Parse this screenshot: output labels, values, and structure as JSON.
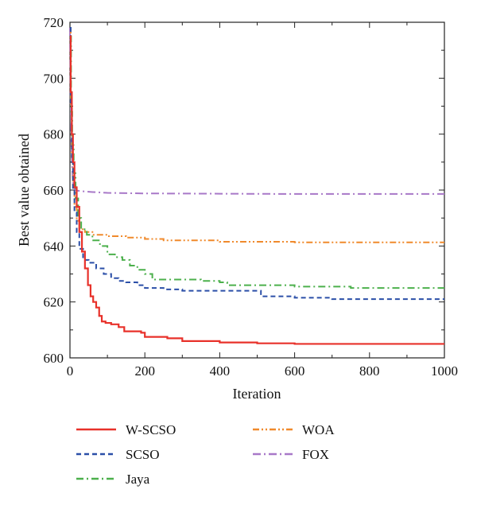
{
  "chart_data": {
    "type": "line",
    "title": "",
    "xlabel": "Iteration",
    "ylabel": "Best value obtained",
    "xlim": [
      0,
      1000
    ],
    "ylim": [
      600,
      720
    ],
    "xticks": [
      0,
      200,
      400,
      600,
      800,
      1000
    ],
    "yticks": [
      600,
      620,
      640,
      660,
      680,
      700,
      720
    ],
    "grid": false,
    "legend_position": "below",
    "series": [
      {
        "name": "W-SCSO",
        "color": "#e8312a",
        "dash": "solid",
        "step": true,
        "x": [
          0,
          2,
          5,
          8,
          12,
          18,
          25,
          32,
          40,
          48,
          55,
          62,
          70,
          78,
          85,
          95,
          110,
          130,
          145,
          170,
          190,
          200,
          260,
          300,
          400,
          500,
          600,
          800,
          1000
        ],
        "y": [
          715,
          695,
          680,
          670,
          661,
          654,
          645,
          638,
          632,
          626,
          622,
          620,
          618,
          615,
          613,
          612.5,
          612,
          611,
          609.5,
          609.5,
          609,
          607.5,
          607,
          606,
          605.5,
          605.2,
          605,
          605,
          605
        ]
      },
      {
        "name": "SCSO",
        "color": "#2b4fa8",
        "dash": "6,4",
        "step": true,
        "x": [
          0,
          2,
          5,
          8,
          12,
          18,
          25,
          35,
          50,
          70,
          90,
          110,
          130,
          150,
          180,
          200,
          250,
          300,
          400,
          500,
          510,
          600,
          700,
          800,
          1000
        ],
        "y": [
          718,
          690,
          670,
          660,
          652,
          645,
          639,
          635,
          634,
          632,
          630,
          628.5,
          627.5,
          627,
          626,
          625,
          624.5,
          624,
          624,
          624,
          622,
          621.5,
          621,
          621,
          621
        ]
      },
      {
        "name": "Jaya",
        "color": "#4cb04c",
        "dash": "9,4,2,4",
        "step": true,
        "x": [
          0,
          3,
          6,
          10,
          15,
          22,
          30,
          45,
          60,
          80,
          100,
          120,
          140,
          160,
          180,
          200,
          220,
          260,
          300,
          350,
          400,
          420,
          500,
          600,
          700,
          750,
          800,
          1000
        ],
        "y": [
          715,
          688,
          676,
          666,
          657,
          650,
          646,
          644,
          642,
          640,
          637,
          636,
          635,
          633,
          631.5,
          630,
          628,
          628,
          628,
          627.5,
          627,
          626,
          626,
          625.5,
          625.5,
          625,
          625,
          625
        ]
      },
      {
        "name": "WOA",
        "color": "#f08a2c",
        "dash": "8,3,2,3,2,3",
        "step": true,
        "x": [
          0,
          2,
          5,
          8,
          12,
          18,
          25,
          40,
          60,
          100,
          150,
          200,
          250,
          300,
          400,
          500,
          600,
          700,
          800,
          1000
        ],
        "y": [
          718,
          690,
          672,
          662,
          654,
          649,
          646,
          645,
          644,
          643.5,
          643,
          642.5,
          642,
          642,
          641.5,
          641.5,
          641.3,
          641.3,
          641.3,
          641.3
        ]
      },
      {
        "name": "FOX",
        "color": "#a878c8",
        "dash": "10,4,2,4",
        "step": false,
        "x": [
          0,
          2,
          4,
          7,
          10,
          15,
          20,
          30,
          60,
          100,
          200,
          400,
          600,
          800,
          1000
        ],
        "y": [
          718,
          690,
          675,
          665,
          661,
          660,
          659.8,
          659.6,
          659.3,
          659,
          658.8,
          658.7,
          658.6,
          658.6,
          658.6
        ]
      }
    ]
  }
}
